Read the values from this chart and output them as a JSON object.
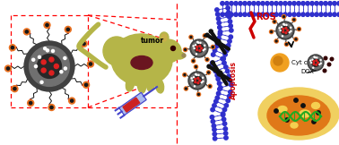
{
  "bg_color": "#ffffff",
  "tumor_label": "tumor",
  "ros_label": "ROS",
  "apoptosis_label": "Apoptosis",
  "cytc_label": "Cyt c",
  "dox_label": "DOX",
  "mouse_color": "#b5b548",
  "tumor_color": "#6a1520",
  "ligand_color_orange": "#e87020",
  "ligand_color_red": "#cc2020",
  "membrane_color": "#3030cc",
  "membrane_highlight": "#9090ee",
  "ros_color": "#cc0000",
  "apoptosis_color": "#cc0000",
  "syringe_body_color": "#aabbee",
  "syringe_fill_color": "#cc2222",
  "cell_outer_color": "#f0d060",
  "cell_inner_color": "#e07818",
  "dna_color": "#22aa22",
  "np_outer": "#404040",
  "np_mid": "#707070",
  "np_inner": "#282828"
}
